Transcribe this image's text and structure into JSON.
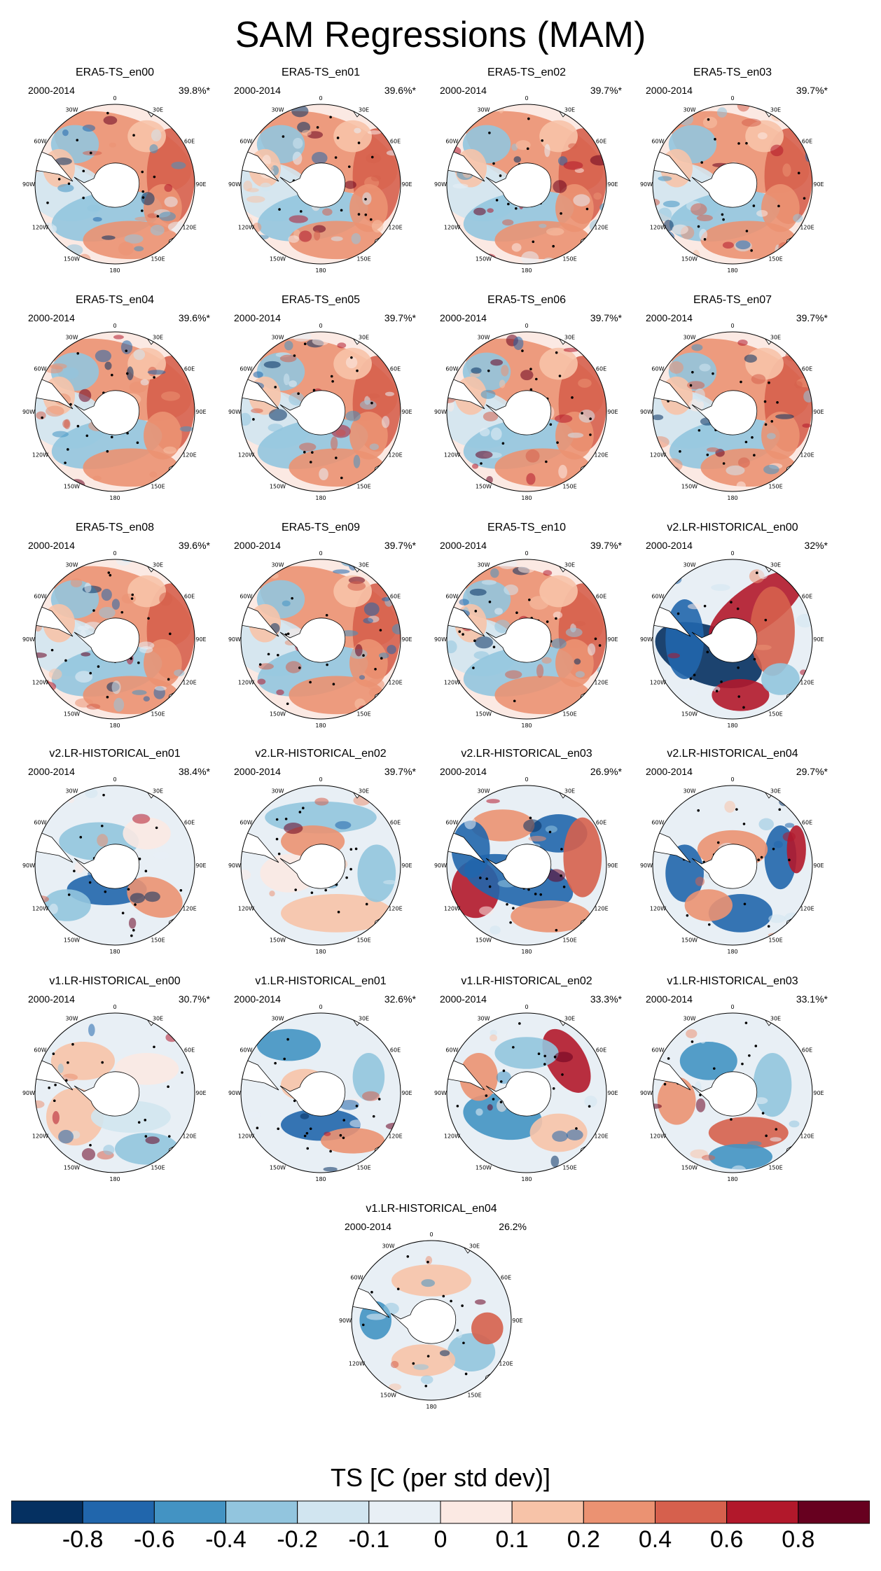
{
  "title": "SAM Regressions (MAM)",
  "period": "2000-2014",
  "lon_labels": [
    "0",
    "30E",
    "60E",
    "90E",
    "120E",
    "150E",
    "180",
    "150W",
    "120W",
    "90W",
    "60W",
    "30W"
  ],
  "panels": [
    {
      "name": "ERA5-TS_en00",
      "pct": "39.8%*",
      "kind": "era5"
    },
    {
      "name": "ERA5-TS_en01",
      "pct": "39.6%*",
      "kind": "era5"
    },
    {
      "name": "ERA5-TS_en02",
      "pct": "39.7%*",
      "kind": "era5"
    },
    {
      "name": "ERA5-TS_en03",
      "pct": "39.7%*",
      "kind": "era5"
    },
    {
      "name": "ERA5-TS_en04",
      "pct": "39.6%*",
      "kind": "era5"
    },
    {
      "name": "ERA5-TS_en05",
      "pct": "39.7%*",
      "kind": "era5"
    },
    {
      "name": "ERA5-TS_en06",
      "pct": "39.7%*",
      "kind": "era5"
    },
    {
      "name": "ERA5-TS_en07",
      "pct": "39.7%*",
      "kind": "era5"
    },
    {
      "name": "ERA5-TS_en08",
      "pct": "39.6%*",
      "kind": "era5"
    },
    {
      "name": "ERA5-TS_en09",
      "pct": "39.7%*",
      "kind": "era5"
    },
    {
      "name": "ERA5-TS_en10",
      "pct": "39.7%*",
      "kind": "era5"
    },
    {
      "name": "v2.LR-HISTORICAL_en00",
      "pct": "32%*",
      "kind": "v2a"
    },
    {
      "name": "v2.LR-HISTORICAL_en01",
      "pct": "38.4%*",
      "kind": "v2b"
    },
    {
      "name": "v2.LR-HISTORICAL_en02",
      "pct": "39.7%*",
      "kind": "v2c"
    },
    {
      "name": "v2.LR-HISTORICAL_en03",
      "pct": "26.9%*",
      "kind": "v2d"
    },
    {
      "name": "v2.LR-HISTORICAL_en04",
      "pct": "29.7%*",
      "kind": "v2e"
    },
    {
      "name": "v1.LR-HISTORICAL_en00",
      "pct": "30.7%*",
      "kind": "v1a"
    },
    {
      "name": "v1.LR-HISTORICAL_en01",
      "pct": "32.6%*",
      "kind": "v1b"
    },
    {
      "name": "v1.LR-HISTORICAL_en02",
      "pct": "33.3%*",
      "kind": "v1c"
    },
    {
      "name": "v1.LR-HISTORICAL_en03",
      "pct": "33.1%*",
      "kind": "v1d"
    },
    {
      "name": "v1.LR-HISTORICAL_en04",
      "pct": "26.2%",
      "kind": "v1e"
    }
  ],
  "colorbar": {
    "title": "TS [C (per std dev)]",
    "colors": [
      "#053061",
      "#2166ac",
      "#4393c3",
      "#92c5de",
      "#d1e5f0",
      "#e8eff5",
      "#fbe9e3",
      "#f7c3a8",
      "#eb9272",
      "#d6604d",
      "#b2182b",
      "#67001f"
    ],
    "tick_labels": [
      "-0.8",
      "-0.6",
      "-0.4",
      "-0.2",
      "-0.1",
      "0",
      "0.1",
      "0.2",
      "0.4",
      "0.6",
      "0.8"
    ]
  }
}
